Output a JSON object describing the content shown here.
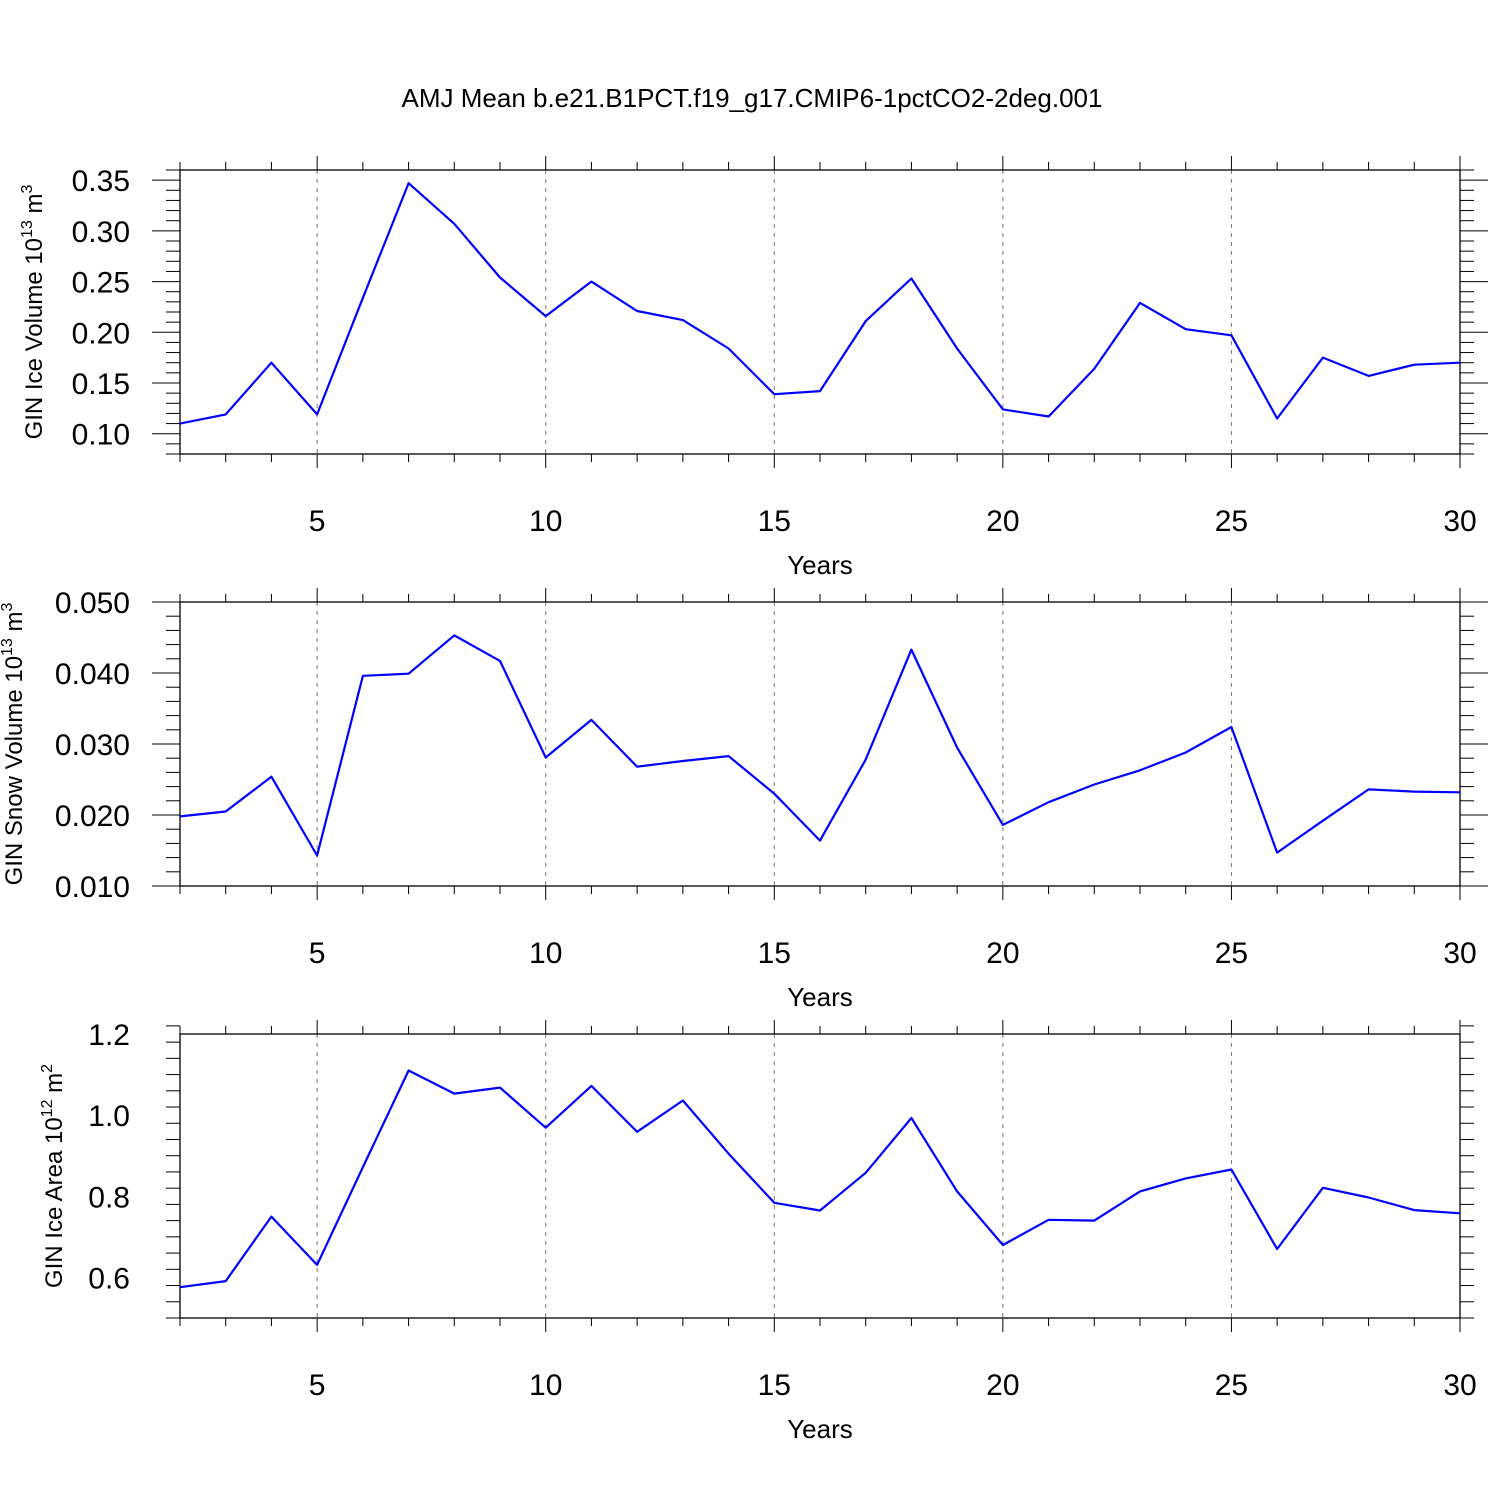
{
  "title": "AMJ Mean b.e21.B1PCT.f19_g17.CMIP6-1pctCO2-2deg.001",
  "colors": {
    "series": "#0000ff",
    "grid": "#777777",
    "axis": "#000000"
  },
  "chart_data": [
    {
      "type": "line",
      "xlabel": "Years",
      "ylabel": "GIN Ice Volume 10",
      "ylabel_exp": "13",
      "ylabel_unit": " m",
      "ylabel_unit_exp": "3",
      "xlim": [
        2,
        30
      ],
      "ylim": [
        0.08,
        0.36
      ],
      "x_ticks": [
        5,
        10,
        15,
        20,
        25,
        30
      ],
      "x_tick_labels": [
        "5",
        "10",
        "15",
        "20",
        "25",
        "30"
      ],
      "y_ticks": [
        0.1,
        0.15,
        0.2,
        0.25,
        0.3,
        0.35
      ],
      "y_tick_labels": [
        "0.10",
        "0.15",
        "0.20",
        "0.25",
        "0.30",
        "0.35"
      ],
      "y_minor_step": 0.01,
      "grid": "vertical dashed at major x ticks",
      "series": [
        {
          "x": [
            2,
            3,
            4,
            5,
            6,
            7,
            8,
            9,
            10,
            11,
            12,
            13,
            14,
            15,
            16,
            17,
            18,
            19,
            20,
            21,
            22,
            23,
            24,
            25,
            26,
            27,
            28,
            29,
            30
          ],
          "values": [
            0.11,
            0.119,
            0.17,
            0.119,
            0.234,
            0.347,
            0.307,
            0.254,
            0.216,
            0.25,
            0.221,
            0.212,
            0.184,
            0.139,
            0.142,
            0.211,
            0.253,
            0.184,
            0.124,
            0.117,
            0.164,
            0.229,
            0.203,
            0.197,
            0.115,
            0.175,
            0.157,
            0.168,
            0.17
          ]
        }
      ]
    },
    {
      "type": "line",
      "xlabel": "Years",
      "ylabel": "GIN Snow Volume 10",
      "ylabel_exp": "13",
      "ylabel_unit": " m",
      "ylabel_unit_exp": "3",
      "xlim": [
        2,
        30
      ],
      "ylim": [
        0.01,
        0.05
      ],
      "x_ticks": [
        5,
        10,
        15,
        20,
        25,
        30
      ],
      "x_tick_labels": [
        "5",
        "10",
        "15",
        "20",
        "25",
        "30"
      ],
      "y_ticks": [
        0.01,
        0.02,
        0.03,
        0.04,
        0.05
      ],
      "y_tick_labels": [
        "0.010",
        "0.020",
        "0.030",
        "0.040",
        "0.050"
      ],
      "y_minor_step": 0.002,
      "grid": "vertical dashed at major x ticks",
      "series": [
        {
          "x": [
            2,
            3,
            4,
            5,
            6,
            7,
            8,
            9,
            10,
            11,
            12,
            13,
            14,
            15,
            16,
            17,
            18,
            19,
            20,
            21,
            22,
            23,
            24,
            25,
            26,
            27,
            28,
            29,
            30
          ],
          "values": [
            0.0198,
            0.0205,
            0.0254,
            0.0143,
            0.0396,
            0.0399,
            0.0453,
            0.0417,
            0.0281,
            0.0334,
            0.0268,
            0.0276,
            0.0283,
            0.023,
            0.0164,
            0.0278,
            0.0433,
            0.0295,
            0.0186,
            0.0218,
            0.0243,
            0.0263,
            0.0288,
            0.0324,
            0.0147,
            0.0192,
            0.0236,
            0.0233,
            0.0232
          ]
        }
      ]
    },
    {
      "type": "line",
      "xlabel": "Years",
      "ylabel": "GIN Ice Area 10",
      "ylabel_exp": "12",
      "ylabel_unit": " m",
      "ylabel_unit_exp": "2",
      "xlim": [
        2,
        30
      ],
      "ylim": [
        0.5,
        1.2
      ],
      "x_ticks": [
        5,
        10,
        15,
        20,
        25,
        30
      ],
      "x_tick_labels": [
        "5",
        "10",
        "15",
        "20",
        "25",
        "30"
      ],
      "y_ticks": [
        0.6,
        0.8,
        1.0,
        1.2
      ],
      "y_tick_labels": [
        "0.6",
        "0.8",
        "1.0",
        "1.2"
      ],
      "y_minor_step": 0.04,
      "grid": "vertical dashed at major x ticks",
      "series": [
        {
          "x": [
            2,
            3,
            4,
            5,
            6,
            7,
            8,
            9,
            10,
            11,
            12,
            13,
            14,
            15,
            16,
            17,
            18,
            19,
            20,
            21,
            22,
            23,
            24,
            25,
            26,
            27,
            28,
            29,
            30
          ],
          "values": [
            0.576,
            0.591,
            0.75,
            0.631,
            0.872,
            1.11,
            1.053,
            1.068,
            0.969,
            1.072,
            0.959,
            1.036,
            0.905,
            0.784,
            0.765,
            0.858,
            0.993,
            0.812,
            0.68,
            0.742,
            0.74,
            0.812,
            0.844,
            0.866,
            0.67,
            0.821,
            0.797,
            0.766,
            0.758
          ]
        }
      ]
    }
  ]
}
